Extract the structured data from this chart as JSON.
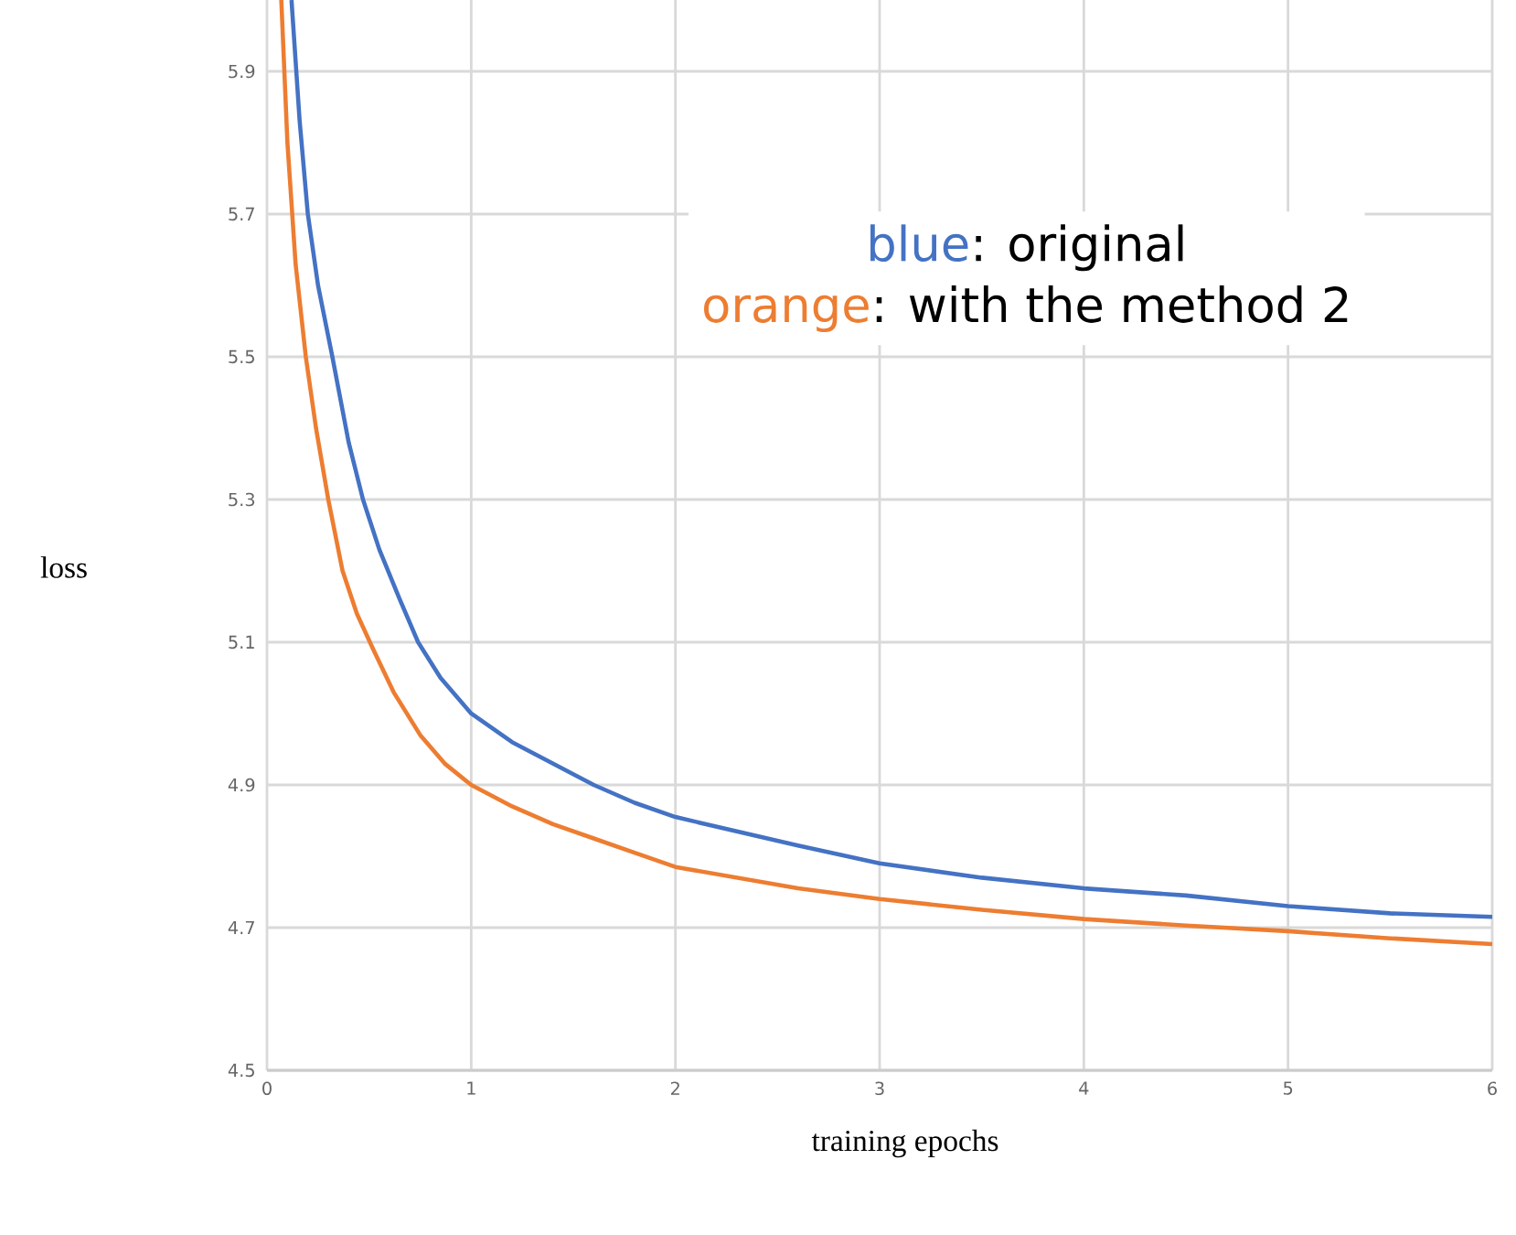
{
  "chart_data": {
    "type": "line",
    "xlabel": "training epochs",
    "ylabel": "loss",
    "annotations": [
      ": original",
      ": with the method 2"
    ],
    "series": [
      {
        "name": "blue",
        "color": "#4472c4",
        "x": [
          0.12,
          0.16,
          0.2,
          0.25,
          0.32,
          0.4,
          0.47,
          0.55,
          0.65,
          0.74,
          0.85,
          1,
          1.2,
          1.4,
          1.6,
          1.8,
          2,
          2.3,
          2.6,
          3,
          3.5,
          4,
          4.5,
          5,
          5.5,
          6
        ],
        "values": [
          6.0,
          5.83,
          5.7,
          5.6,
          5.5,
          5.38,
          5.3,
          5.23,
          5.16,
          5.1,
          5.05,
          5.0,
          4.96,
          4.93,
          4.9,
          4.875,
          4.855,
          4.835,
          4.815,
          4.79,
          4.77,
          4.755,
          4.745,
          4.73,
          4.72,
          4.715
        ]
      },
      {
        "name": "orange",
        "color": "#ed7d31",
        "x": [
          0.07,
          0.1,
          0.14,
          0.19,
          0.24,
          0.3,
          0.37,
          0.44,
          0.52,
          0.62,
          0.75,
          0.87,
          1,
          1.2,
          1.4,
          1.6,
          1.8,
          2,
          2.3,
          2.6,
          3,
          3.5,
          4,
          4.5,
          5,
          5.5,
          6
        ],
        "values": [
          6.0,
          5.8,
          5.63,
          5.5,
          5.4,
          5.3,
          5.2,
          5.14,
          5.09,
          5.03,
          4.97,
          4.93,
          4.9,
          4.87,
          4.845,
          4.825,
          4.805,
          4.785,
          4.77,
          4.755,
          4.74,
          4.725,
          4.712,
          4.703,
          4.695,
          4.685,
          4.677
        ]
      }
    ],
    "xlim": [
      0,
      6
    ],
    "ylim": [
      4.5,
      6.0
    ],
    "xticks": [
      0,
      1,
      2,
      3,
      4,
      5,
      6
    ],
    "yticks": [
      4.5,
      4.7,
      4.9,
      5.1,
      5.3,
      5.5,
      5.7,
      5.9
    ],
    "grid": true,
    "legend": "top right",
    "marker": "none",
    "line_style": "solid"
  }
}
